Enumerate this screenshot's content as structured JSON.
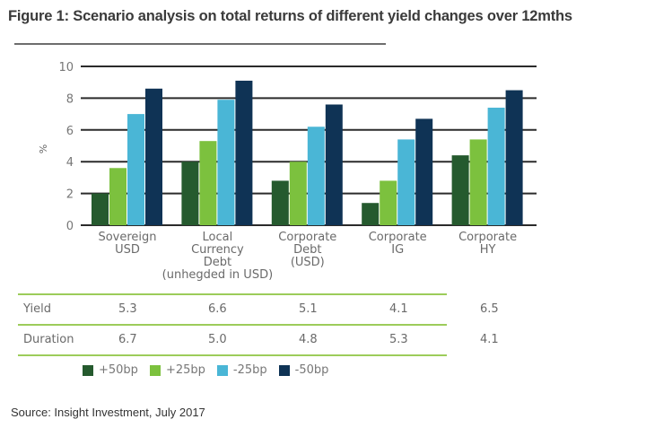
{
  "title": "Figure 1: Scenario analysis on total returns of different yield changes over 12mths",
  "source": "Source: Insight Investment, July 2017",
  "chart_data": {
    "type": "bar",
    "title": "Figure 1: Scenario analysis on total returns of different yield changes over 12mths",
    "xlabel": "",
    "ylabel": "%",
    "ylim": [
      0,
      10
    ],
    "yticks": [
      0,
      2,
      4,
      6,
      8,
      10
    ],
    "grid": true,
    "legend_position": "bottom",
    "categories": [
      [
        "Sovereign",
        "USD"
      ],
      [
        "Local",
        "Currency",
        "Debt",
        "(unhegded in USD)"
      ],
      [
        "Corporate",
        "Debt",
        "(USD)"
      ],
      [
        "Corporate",
        "IG"
      ],
      [
        "Corporate",
        "HY"
      ]
    ],
    "series": [
      {
        "name": "+50bp",
        "color": "#255a2e",
        "values": [
          2.0,
          4.0,
          2.8,
          1.4,
          4.4
        ]
      },
      {
        "name": "+25bp",
        "color": "#7cc13e",
        "values": [
          3.6,
          5.3,
          4.0,
          2.8,
          5.4
        ]
      },
      {
        "name": "-25bp",
        "color": "#4ab6d6",
        "values": [
          7.0,
          7.9,
          6.2,
          5.4,
          7.4
        ]
      },
      {
        "name": "-50bp",
        "color": "#0f3355",
        "values": [
          8.6,
          9.1,
          7.6,
          6.7,
          8.5
        ]
      }
    ]
  },
  "table": {
    "rows": [
      {
        "label": "Yield",
        "values": [
          "5.3",
          "6.6",
          "5.1",
          "4.1",
          "6.5"
        ]
      },
      {
        "label": "Duration",
        "values": [
          "6.7",
          "5.0",
          "4.8",
          "5.3",
          "4.1"
        ]
      }
    ]
  },
  "legend": [
    {
      "label": "+50bp",
      "color": "#255a2e"
    },
    {
      "label": "+25bp",
      "color": "#7cc13e"
    },
    {
      "label": "-25bp",
      "color": "#4ab6d6"
    },
    {
      "label": "-50bp",
      "color": "#0f3355"
    }
  ]
}
